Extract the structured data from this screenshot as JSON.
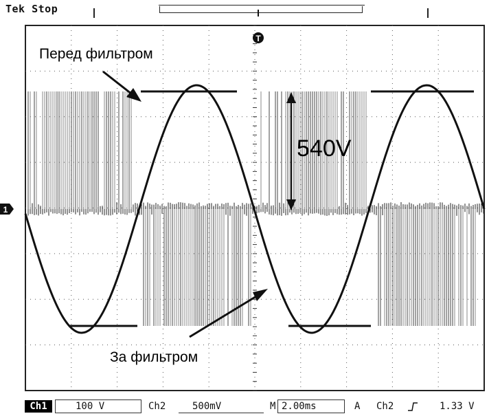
{
  "screen": {
    "status": "Tek Stop",
    "trigger_marker": "T",
    "ch1_ground_marker": "1"
  },
  "annotations": {
    "before_filter": "Перед фильтром",
    "after_filter": "За фильтром",
    "amplitude": "540V"
  },
  "readout": {
    "ch1_label": "Ch1",
    "ch1_scale": "100 V",
    "ch2_label": "Ch2",
    "ch2_scale": "500mV",
    "time_prefix": "M",
    "time_scale": "2.00ms",
    "trigger_mode": "A",
    "trigger_source": "Ch2",
    "trigger_slope_icon": "rising-edge-icon",
    "trigger_level": "1.33 V"
  },
  "colors": {
    "trace": "#111111",
    "grid": "#333333",
    "background": "#ffffff"
  }
}
